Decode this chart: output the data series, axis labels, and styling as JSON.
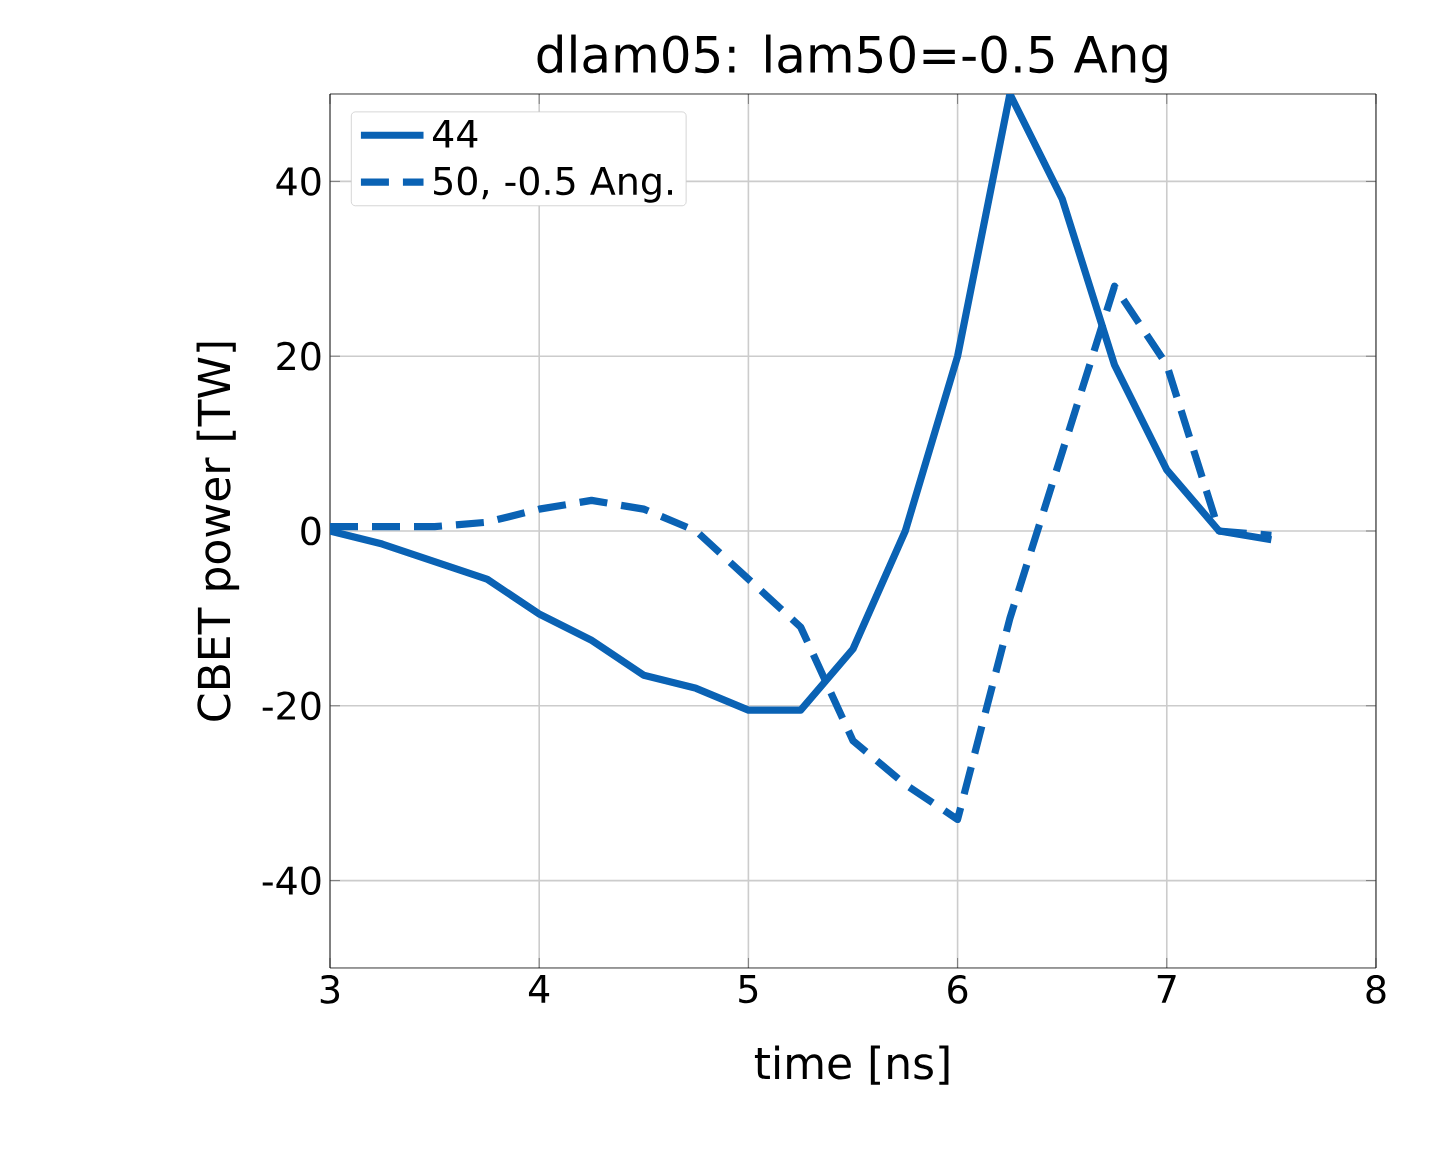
{
  "chart_data": {
    "type": "line",
    "title": "dlam05: lam50=-0.5 Ang",
    "xlabel": "time  [ns]",
    "ylabel": "CBET power  [TW]",
    "x": [
      3,
      3.25,
      3.5,
      3.75,
      4,
      4.25,
      4.5,
      4.75,
      5,
      5.25,
      5.5,
      5.75,
      6,
      6.25,
      6.5,
      6.75,
      7,
      7.25,
      7.5
    ],
    "series": [
      {
        "name": "44",
        "color": "#0a62b4",
        "line_style": "solid",
        "values": [
          0,
          -1.5,
          -3.5,
          -5.5,
          -9.5,
          -12.5,
          -16.5,
          -18,
          -20.5,
          -20.5,
          -13.5,
          0,
          20,
          50,
          38,
          19,
          7,
          0,
          -1
        ]
      },
      {
        "name": "50, -0.5 Ang.",
        "color": "#0a62b4",
        "line_style": "dashed",
        "values": [
          0.5,
          0.5,
          0.5,
          1,
          2.5,
          3.5,
          2.5,
          0,
          -5.5,
          -11,
          -24,
          -29,
          -33,
          -10,
          9,
          28,
          19,
          0,
          -0.5
        ]
      }
    ],
    "xlim": [
      3,
      8
    ],
    "ylim": [
      -50,
      50
    ],
    "xticks": [
      3,
      4,
      5,
      6,
      7,
      8
    ],
    "yticks": [
      -40,
      -20,
      0,
      20,
      40
    ],
    "grid": true,
    "legend": "top left",
    "marker": "none"
  }
}
